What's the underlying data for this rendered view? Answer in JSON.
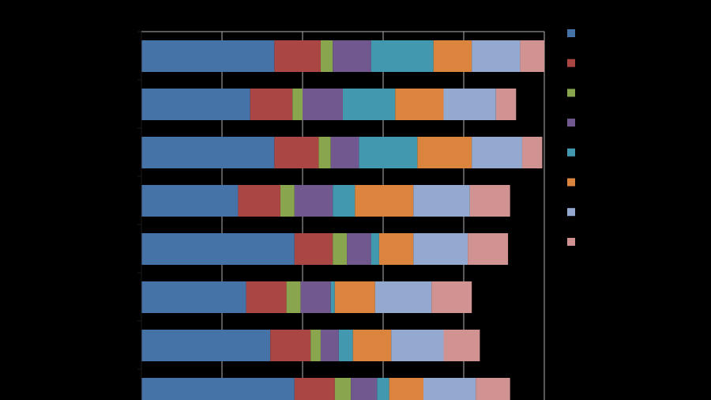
{
  "chart_data": {
    "type": "bar",
    "orientation": "horizontal",
    "stacked": true,
    "title": "",
    "xlabel": "",
    "ylabel": "",
    "xlim": [
      0,
      100
    ],
    "grid": true,
    "legend_position": "right",
    "categories": [
      "",
      "",
      "",
      "",
      "",
      "",
      "",
      ""
    ],
    "series": [
      {
        "color": "#4572a7",
        "values": [
          33,
          27,
          33,
          24,
          38,
          26,
          32,
          38
        ]
      },
      {
        "color": "#aa4643",
        "values": [
          11.5,
          10.5,
          11,
          10.5,
          9.5,
          10,
          10,
          10
        ]
      },
      {
        "color": "#89a54e",
        "values": [
          3,
          2.5,
          3,
          3.5,
          3.5,
          3.5,
          2.5,
          4
        ]
      },
      {
        "color": "#71588f",
        "values": [
          9.5,
          10,
          7,
          9.5,
          6,
          7.5,
          4.5,
          6.5
        ]
      },
      {
        "color": "#4198af",
        "values": [
          15.5,
          13,
          14.5,
          5.5,
          2,
          1,
          3.5,
          3
        ]
      },
      {
        "color": "#db843d",
        "values": [
          9.5,
          12,
          13.5,
          14.5,
          8.5,
          10,
          9.5,
          8.5
        ]
      },
      {
        "color": "#93a9cf",
        "values": [
          12,
          13,
          12.5,
          14,
          13.5,
          14,
          13,
          13
        ]
      },
      {
        "color": "#d19392",
        "values": [
          6,
          5,
          5,
          10,
          10,
          10,
          9,
          8.5
        ]
      }
    ]
  }
}
